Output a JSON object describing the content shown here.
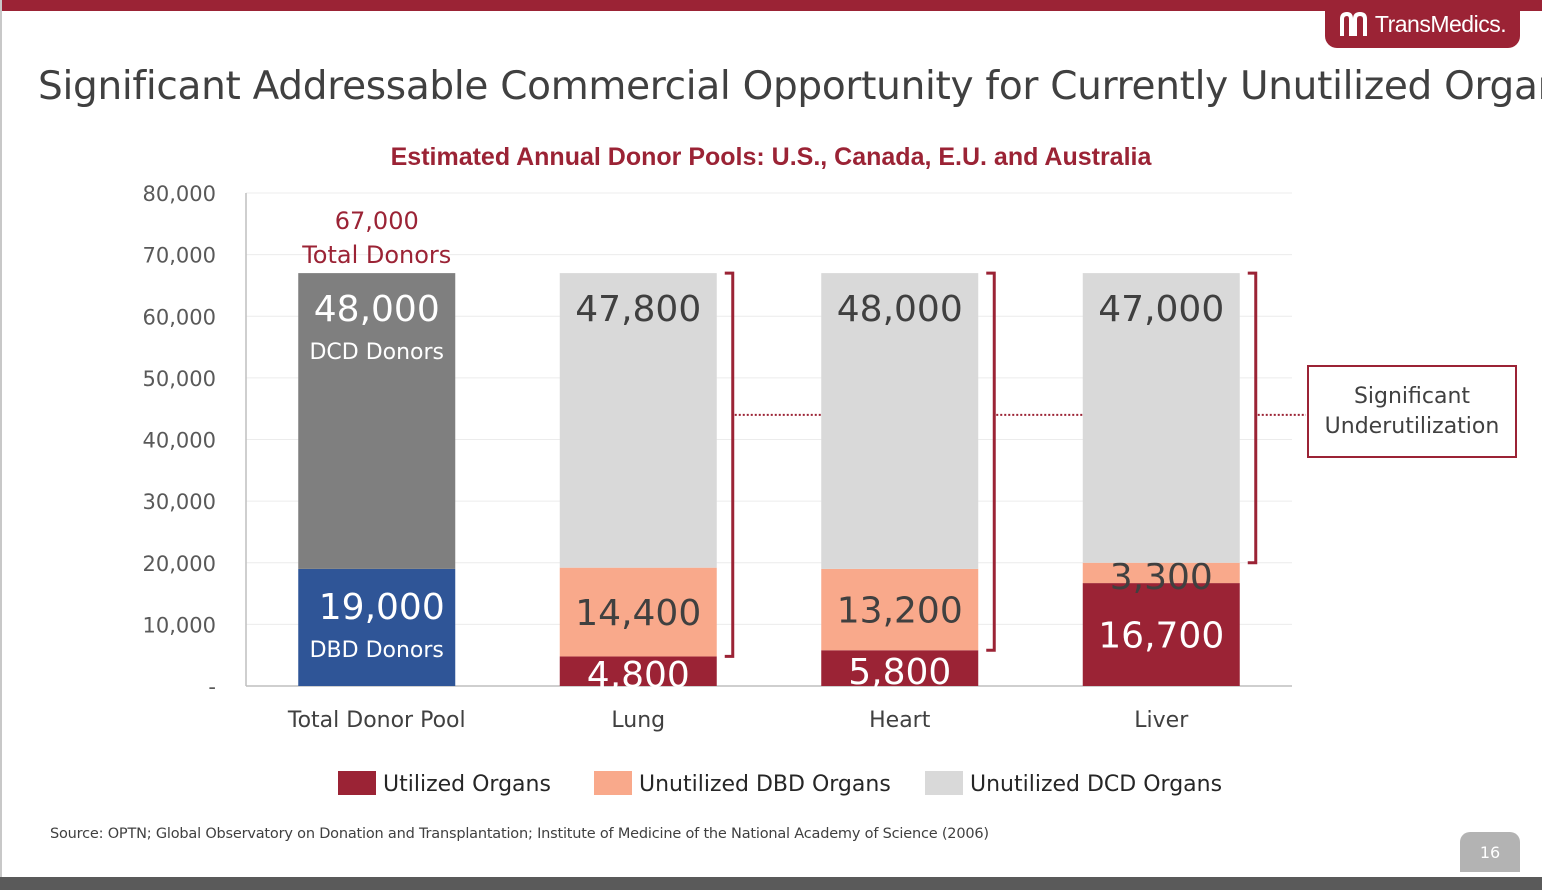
{
  "header": {
    "logo_text": "TransMedics.",
    "title": "Significant Addressable Commercial Opportunity for Currently Unutilized Organs"
  },
  "callout": {
    "line1": "Significant",
    "line2": "Underutilization"
  },
  "footer": {
    "source": "Source: OPTN; Global Observatory on Donation and Transplantation; Institute of Medicine of the National Academy of Science (2006)",
    "page_number": "16"
  },
  "colors": {
    "brand": "#9b2335",
    "utilized": "#9b2335",
    "unutilized_dbd": "#f9a98b",
    "unutilized_dcd": "#d9d9d9",
    "dcd_donors": "#7f7f7f",
    "dbd_donors": "#2f5597"
  },
  "chart_data": {
    "type": "bar",
    "stacked": true,
    "title": "Estimated Annual Donor Pools: U.S., Canada, E.U. and Australia",
    "xlabel": "",
    "ylabel": "",
    "ylim": [
      0,
      80000
    ],
    "yticks": [
      {
        "value": 0,
        "label": "-"
      },
      {
        "value": 10000,
        "label": "10,000"
      },
      {
        "value": 20000,
        "label": "20,000"
      },
      {
        "value": 30000,
        "label": "30,000"
      },
      {
        "value": 40000,
        "label": "40,000"
      },
      {
        "value": 50000,
        "label": "50,000"
      },
      {
        "value": 60000,
        "label": "60,000"
      },
      {
        "value": 70000,
        "label": "70,000"
      },
      {
        "value": 80000,
        "label": "80,000"
      }
    ],
    "grid": true,
    "legend_position": "bottom",
    "categories": [
      "Total Donor Pool",
      "Lung",
      "Heart",
      "Liver"
    ],
    "legend": [
      {
        "name": "Utilized Organs",
        "color": "#9b2335"
      },
      {
        "name": "Unutilized DBD Organs",
        "color": "#f9a98b"
      },
      {
        "name": "Unutilized DCD Organs",
        "color": "#d9d9d9"
      }
    ],
    "total_donors": {
      "value": 67000,
      "line1": "67,000",
      "line2": "Total Donors"
    },
    "bars": [
      {
        "category": "Total Donor Pool",
        "segments": [
          {
            "value": 19000,
            "color": "#2f5597",
            "label": "19,000",
            "sublabel": "DBD Donors",
            "text_color": "#ffffff"
          },
          {
            "value": 48000,
            "color": "#7f7f7f",
            "label": "48,000",
            "sublabel": "DCD Donors",
            "text_color": "#ffffff"
          }
        ]
      },
      {
        "category": "Lung",
        "segments": [
          {
            "value": 4800,
            "color": "#9b2335",
            "label": "4,800",
            "text_color": "#ffffff"
          },
          {
            "value": 14400,
            "color": "#f9a98b",
            "label": "14,400",
            "text_color": "#404040"
          },
          {
            "value": 47800,
            "color": "#d9d9d9",
            "label": "47,800",
            "text_color": "#404040"
          }
        ]
      },
      {
        "category": "Heart",
        "segments": [
          {
            "value": 5800,
            "color": "#9b2335",
            "label": "5,800",
            "text_color": "#ffffff"
          },
          {
            "value": 13200,
            "color": "#f9a98b",
            "label": "13,200",
            "text_color": "#404040"
          },
          {
            "value": 48000,
            "color": "#d9d9d9",
            "label": "48,000",
            "text_color": "#404040"
          }
        ]
      },
      {
        "category": "Liver",
        "segments": [
          {
            "value": 16700,
            "color": "#9b2335",
            "label": "16,700",
            "text_color": "#ffffff"
          },
          {
            "value": 3300,
            "color": "#f9a98b",
            "label": "3,300",
            "text_color": "#404040"
          },
          {
            "value": 47000,
            "color": "#d9d9d9",
            "label": "47,000",
            "text_color": "#404040"
          }
        ]
      }
    ]
  }
}
